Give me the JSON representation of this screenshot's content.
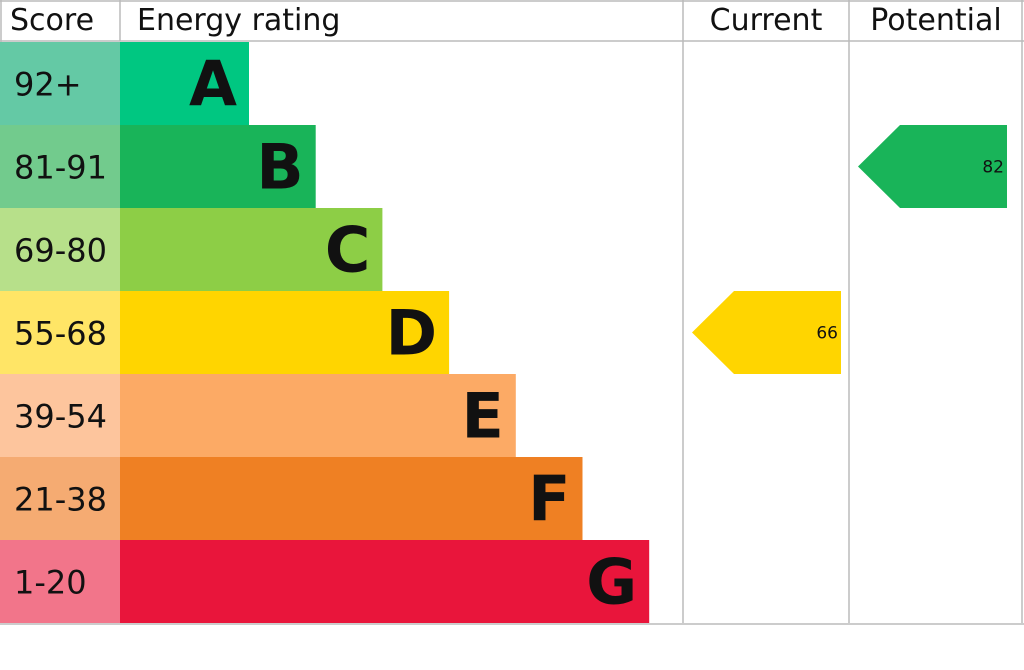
{
  "chart_data": {
    "type": "bar",
    "headers": {
      "score": "Score",
      "rating": "Energy rating",
      "current": "Current",
      "potential": "Potential"
    },
    "bands": [
      {
        "letter": "A",
        "range": "92+",
        "color": "#00c781",
        "score_color": "#64c9a5"
      },
      {
        "letter": "B",
        "range": "81-91",
        "color": "#19b459",
        "score_color": "#72cb8d"
      },
      {
        "letter": "C",
        "range": "69-80",
        "color": "#8dce46",
        "score_color": "#b7e08a"
      },
      {
        "letter": "D",
        "range": "55-68",
        "color": "#ffd500",
        "score_color": "#ffe566"
      },
      {
        "letter": "E",
        "range": "39-54",
        "color": "#fcaa65",
        "score_color": "#fdc59d"
      },
      {
        "letter": "F",
        "range": "21-38",
        "color": "#ef8023",
        "score_color": "#f5ab72"
      },
      {
        "letter": "G",
        "range": "1-20",
        "color": "#e9153b",
        "score_color": "#f2758a"
      }
    ],
    "current": {
      "value": 66,
      "band": "D"
    },
    "potential": {
      "value": 82,
      "band": "B"
    }
  }
}
